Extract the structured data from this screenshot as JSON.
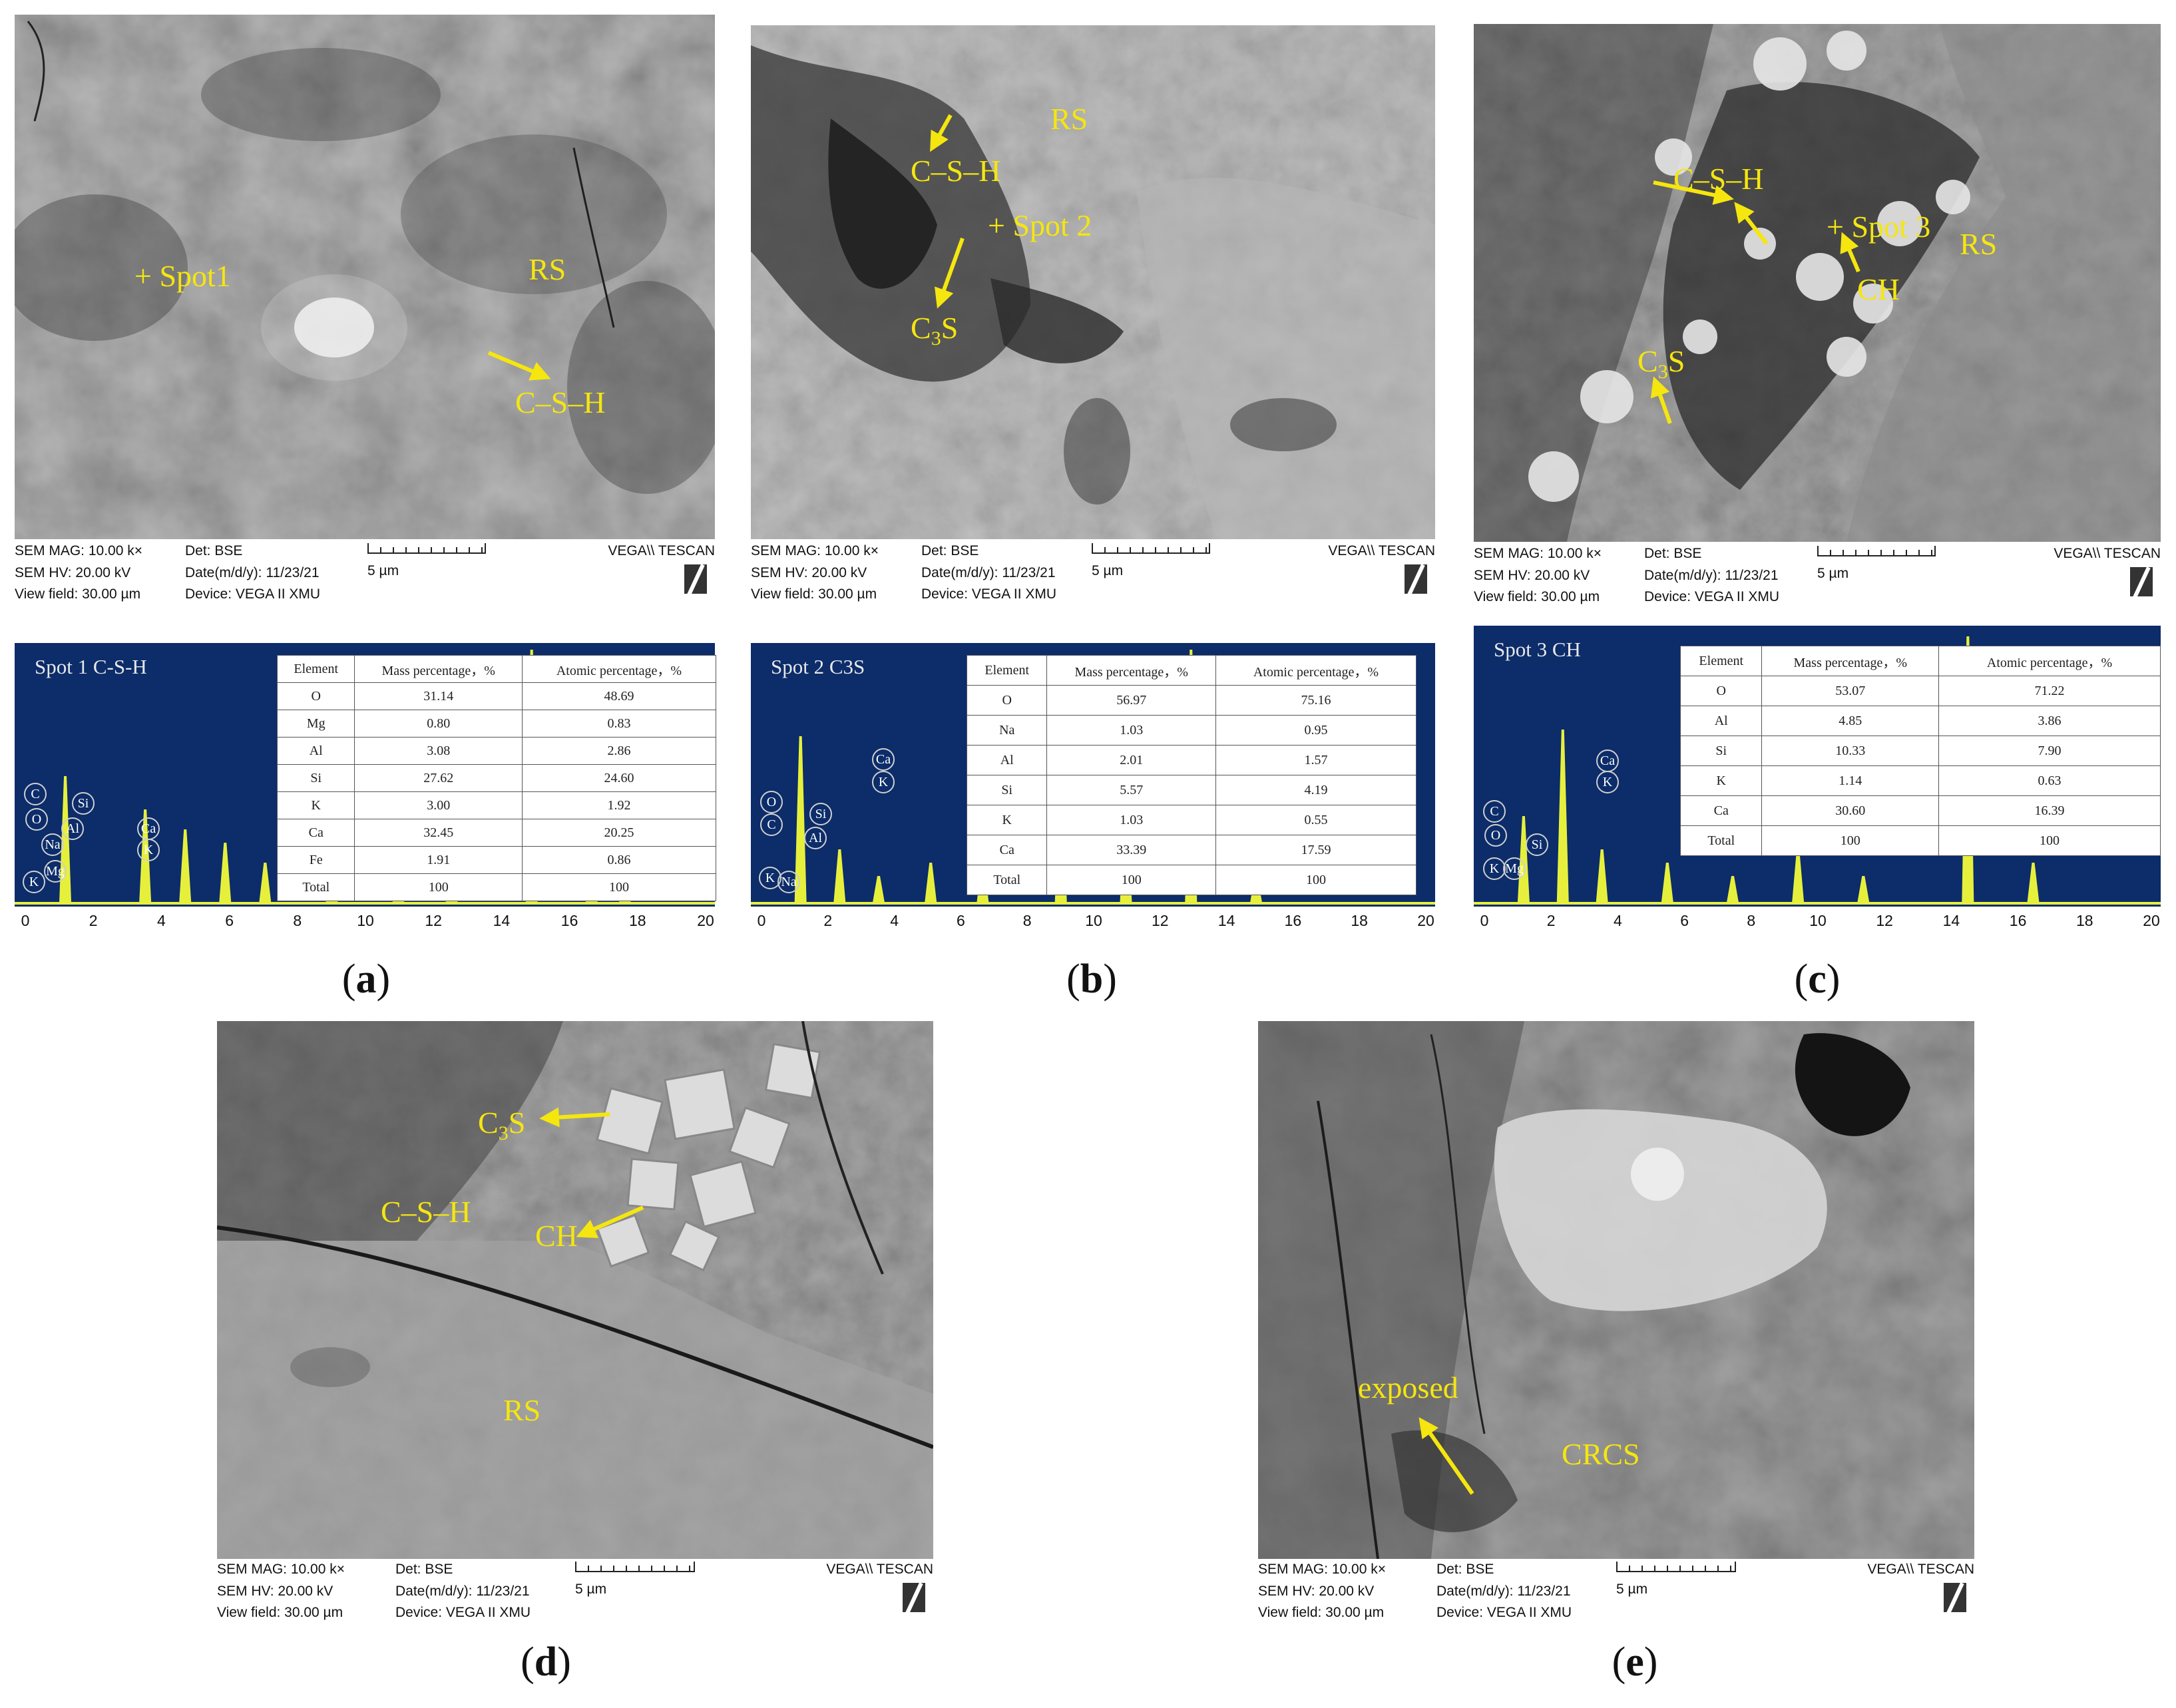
{
  "figure": {
    "panels": [
      {
        "id": "a",
        "caption_letter": "a",
        "annotations": [
          "+ Spot1",
          "RS",
          "C–S–H"
        ]
      },
      {
        "id": "b",
        "caption_letter": "b",
        "annotations": [
          "RS",
          "C–S–H",
          "+ Spot 2",
          "C3S"
        ]
      },
      {
        "id": "c",
        "caption_letter": "c",
        "annotations": [
          "C–S–H",
          "+ Spot 3",
          "RS",
          "CH",
          "C3S"
        ]
      },
      {
        "id": "d",
        "caption_letter": "d",
        "annotations": [
          "C3S",
          "C–S–H",
          "CH",
          "RS"
        ]
      },
      {
        "id": "e",
        "caption_letter": "e",
        "annotations": [
          "exposed",
          "CRCS"
        ]
      }
    ]
  },
  "sem_footer": {
    "mag": "SEM MAG: 10.00 k×",
    "hv": "SEM HV: 20.00 kV",
    "view": "View field: 30.00 µm",
    "det": "Det: BSE",
    "date": "Date(m/d/y): 11/23/21",
    "device": "Device: VEGA II XMU",
    "scale": "5 µm",
    "brand": "VEGA\\\\ TESCAN"
  },
  "eds": [
    {
      "title": "Spot 1  C-S-H",
      "headers": [
        "Element",
        "Mass percentage，%",
        "Atomic percentage，%"
      ],
      "rows": [
        [
          "O",
          "31.14",
          "48.69"
        ],
        [
          "Mg",
          "0.80",
          "0.83"
        ],
        [
          "Al",
          "3.08",
          "2.86"
        ],
        [
          "Si",
          "27.62",
          "24.60"
        ],
        [
          "K",
          "3.00",
          "1.92"
        ],
        [
          "Ca",
          "32.45",
          "20.25"
        ],
        [
          "Fe",
          "1.91",
          "0.86"
        ],
        [
          "Total",
          "100",
          "100"
        ]
      ],
      "peak_labels": [
        "O",
        "C",
        "Si",
        "Al",
        "Na",
        "Mg",
        "K",
        "Ca",
        "K"
      ]
    },
    {
      "title": "Spot 2 C3S",
      "headers": [
        "Element",
        "Mass percentage，%",
        "Atomic percentage，%"
      ],
      "rows": [
        [
          "O",
          "56.97",
          "75.16"
        ],
        [
          "Na",
          "1.03",
          "0.95"
        ],
        [
          "Al",
          "2.01",
          "1.57"
        ],
        [
          "Si",
          "5.57",
          "4.19"
        ],
        [
          "K",
          "1.03",
          "0.55"
        ],
        [
          "Ca",
          "33.39",
          "17.59"
        ],
        [
          "Total",
          "100",
          "100"
        ]
      ],
      "peak_labels": [
        "O",
        "C",
        "Si",
        "Al",
        "K",
        "Na",
        "Ca",
        "K"
      ]
    },
    {
      "title": "Spot 3  CH",
      "headers": [
        "Element",
        "Mass percentage，%",
        "Atomic percentage，%"
      ],
      "rows": [
        [
          "O",
          "53.07",
          "71.22"
        ],
        [
          "Al",
          "4.85",
          "3.86"
        ],
        [
          "Si",
          "10.33",
          "7.90"
        ],
        [
          "K",
          "1.14",
          "0.63"
        ],
        [
          "Ca",
          "30.60",
          "16.39"
        ],
        [
          "Total",
          "100",
          "100"
        ]
      ],
      "peak_labels": [
        "C",
        "O",
        "Si",
        "K",
        "Mg",
        "Ca",
        "K"
      ]
    }
  ],
  "eds_axis_ticks": [
    "0",
    "2",
    "4",
    "6",
    "8",
    "10",
    "12",
    "14",
    "16",
    "18",
    "20"
  ],
  "colors": {
    "annotation": "#f5e60f",
    "eds_background": "#0c2c6a",
    "eds_peaks": "#e6f03c"
  }
}
